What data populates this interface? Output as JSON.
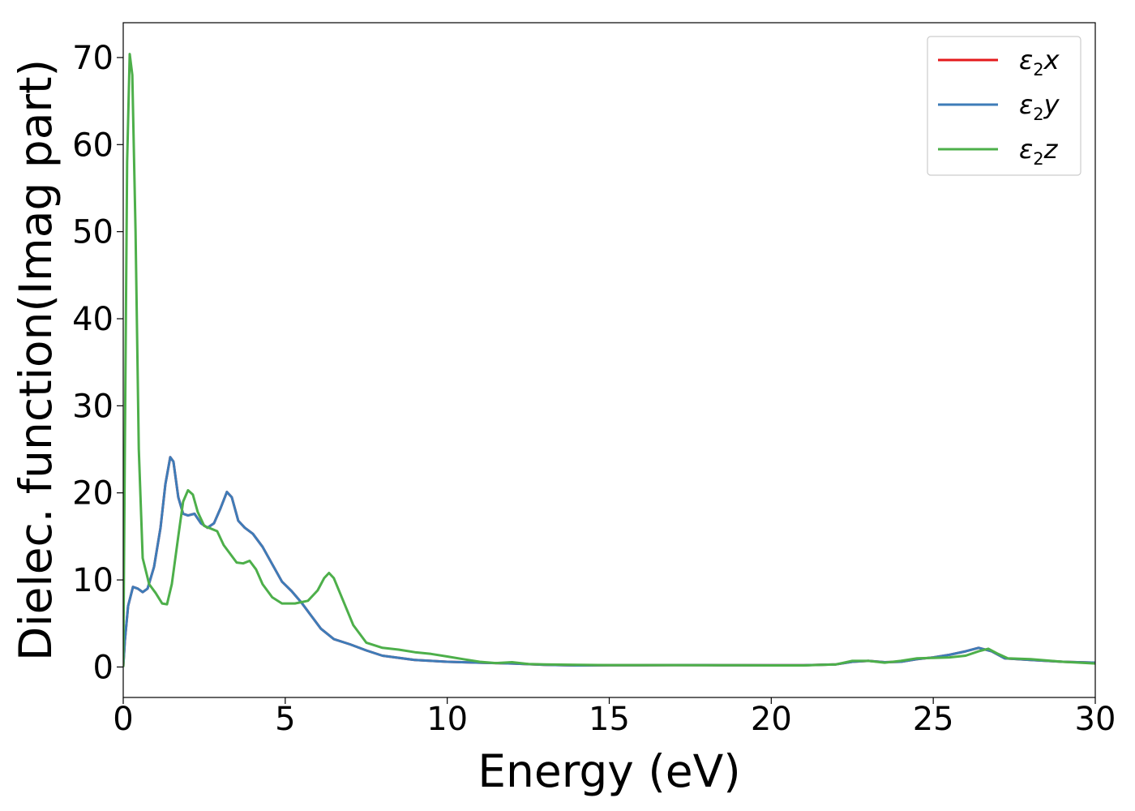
{
  "chart_data": {
    "type": "line",
    "title": "",
    "xlabel": "Energy (eV)",
    "ylabel": "Dielec. function(Imag part)",
    "xlim": [
      0,
      30
    ],
    "ylim": [
      -3.5,
      74
    ],
    "xticks": [
      0,
      5,
      10,
      15,
      20,
      25,
      30
    ],
    "xtick_labels": [
      "0",
      "5",
      "10",
      "15",
      "20",
      "25",
      "30"
    ],
    "yticks": [
      0,
      10,
      20,
      30,
      40,
      50,
      60,
      70
    ],
    "ytick_labels": [
      "0",
      "10",
      "20",
      "30",
      "40",
      "50",
      "60",
      "70"
    ],
    "grid": false,
    "legend_position": "top-right",
    "series": [
      {
        "name": "ε2x",
        "legend_symbol": "ε",
        "legend_sub": "2",
        "legend_var": "x",
        "color": "#e41a1c",
        "points": [
          [
            0,
            0
          ],
          [
            0.05,
            3
          ],
          [
            0.15,
            7
          ],
          [
            0.3,
            9.2
          ],
          [
            0.45,
            9
          ],
          [
            0.6,
            8.6
          ],
          [
            0.75,
            9
          ],
          [
            0.95,
            11.5
          ],
          [
            1.15,
            16
          ],
          [
            1.3,
            21
          ],
          [
            1.45,
            24.1
          ],
          [
            1.55,
            23.6
          ],
          [
            1.7,
            19.5
          ],
          [
            1.85,
            17.6
          ],
          [
            2.0,
            17.4
          ],
          [
            2.2,
            17.6
          ],
          [
            2.4,
            16.5
          ],
          [
            2.6,
            16
          ],
          [
            2.8,
            16.5
          ],
          [
            3.0,
            18.2
          ],
          [
            3.2,
            20.1
          ],
          [
            3.35,
            19.5
          ],
          [
            3.55,
            16.8
          ],
          [
            3.75,
            16
          ],
          [
            4.0,
            15.3
          ],
          [
            4.3,
            13.8
          ],
          [
            4.6,
            11.8
          ],
          [
            4.9,
            9.8
          ],
          [
            5.2,
            8.7
          ],
          [
            5.5,
            7.4
          ],
          [
            5.8,
            5.9
          ],
          [
            6.1,
            4.4
          ],
          [
            6.5,
            3.2
          ],
          [
            7.0,
            2.6
          ],
          [
            7.5,
            1.9
          ],
          [
            8.0,
            1.3
          ],
          [
            9.0,
            0.8
          ],
          [
            10,
            0.6
          ],
          [
            11,
            0.5
          ],
          [
            12,
            0.4
          ],
          [
            13,
            0.25
          ],
          [
            14,
            0.18
          ],
          [
            15,
            0.2
          ],
          [
            16,
            0.2
          ],
          [
            17,
            0.22
          ],
          [
            18,
            0.22
          ],
          [
            19,
            0.2
          ],
          [
            20,
            0.2
          ],
          [
            21,
            0.2
          ],
          [
            22,
            0.3
          ],
          [
            22.5,
            0.6
          ],
          [
            23,
            0.7
          ],
          [
            23.5,
            0.55
          ],
          [
            24,
            0.6
          ],
          [
            24.5,
            0.9
          ],
          [
            25,
            1.1
          ],
          [
            25.5,
            1.4
          ],
          [
            26,
            1.8
          ],
          [
            26.4,
            2.2
          ],
          [
            26.8,
            1.8
          ],
          [
            27.2,
            1.0
          ],
          [
            28,
            0.8
          ],
          [
            29,
            0.6
          ],
          [
            30,
            0.5
          ]
        ]
      },
      {
        "name": "ε2y",
        "legend_symbol": "ε",
        "legend_sub": "2",
        "legend_var": "y",
        "color": "#3e7cb8",
        "points": [
          [
            0,
            0
          ],
          [
            0.05,
            3
          ],
          [
            0.15,
            7
          ],
          [
            0.3,
            9.2
          ],
          [
            0.45,
            9
          ],
          [
            0.6,
            8.6
          ],
          [
            0.75,
            9
          ],
          [
            0.95,
            11.5
          ],
          [
            1.15,
            16
          ],
          [
            1.3,
            21
          ],
          [
            1.45,
            24.1
          ],
          [
            1.55,
            23.6
          ],
          [
            1.7,
            19.5
          ],
          [
            1.85,
            17.6
          ],
          [
            2.0,
            17.4
          ],
          [
            2.2,
            17.6
          ],
          [
            2.4,
            16.5
          ],
          [
            2.6,
            16
          ],
          [
            2.8,
            16.5
          ],
          [
            3.0,
            18.2
          ],
          [
            3.2,
            20.1
          ],
          [
            3.35,
            19.5
          ],
          [
            3.55,
            16.8
          ],
          [
            3.75,
            16
          ],
          [
            4.0,
            15.3
          ],
          [
            4.3,
            13.8
          ],
          [
            4.6,
            11.8
          ],
          [
            4.9,
            9.8
          ],
          [
            5.2,
            8.7
          ],
          [
            5.5,
            7.4
          ],
          [
            5.8,
            5.9
          ],
          [
            6.1,
            4.4
          ],
          [
            6.5,
            3.2
          ],
          [
            7.0,
            2.6
          ],
          [
            7.5,
            1.9
          ],
          [
            8.0,
            1.3
          ],
          [
            9.0,
            0.8
          ],
          [
            10,
            0.6
          ],
          [
            11,
            0.5
          ],
          [
            12,
            0.4
          ],
          [
            13,
            0.25
          ],
          [
            14,
            0.18
          ],
          [
            15,
            0.2
          ],
          [
            16,
            0.2
          ],
          [
            17,
            0.22
          ],
          [
            18,
            0.22
          ],
          [
            19,
            0.2
          ],
          [
            20,
            0.2
          ],
          [
            21,
            0.2
          ],
          [
            22,
            0.3
          ],
          [
            22.5,
            0.6
          ],
          [
            23,
            0.7
          ],
          [
            23.5,
            0.55
          ],
          [
            24,
            0.6
          ],
          [
            24.5,
            0.9
          ],
          [
            25,
            1.1
          ],
          [
            25.5,
            1.4
          ],
          [
            26,
            1.8
          ],
          [
            26.4,
            2.2
          ],
          [
            26.8,
            1.8
          ],
          [
            27.2,
            1.0
          ],
          [
            28,
            0.8
          ],
          [
            29,
            0.6
          ],
          [
            30,
            0.5
          ]
        ]
      },
      {
        "name": "ε2z",
        "legend_symbol": "ε",
        "legend_sub": "2",
        "legend_var": "z",
        "color": "#4daf4a",
        "points": [
          [
            0,
            0
          ],
          [
            0.05,
            25
          ],
          [
            0.12,
            58
          ],
          [
            0.2,
            70.4
          ],
          [
            0.28,
            68
          ],
          [
            0.38,
            50
          ],
          [
            0.48,
            25
          ],
          [
            0.6,
            12.5
          ],
          [
            0.8,
            9.5
          ],
          [
            1.0,
            8.5
          ],
          [
            1.2,
            7.3
          ],
          [
            1.35,
            7.2
          ],
          [
            1.5,
            9.5
          ],
          [
            1.7,
            15
          ],
          [
            1.85,
            19
          ],
          [
            2.0,
            20.3
          ],
          [
            2.15,
            19.8
          ],
          [
            2.3,
            17.8
          ],
          [
            2.5,
            16.2
          ],
          [
            2.7,
            15.9
          ],
          [
            2.9,
            15.6
          ],
          [
            3.1,
            14
          ],
          [
            3.3,
            13
          ],
          [
            3.5,
            12
          ],
          [
            3.7,
            11.9
          ],
          [
            3.9,
            12.2
          ],
          [
            4.1,
            11.2
          ],
          [
            4.3,
            9.5
          ],
          [
            4.6,
            8.0
          ],
          [
            4.9,
            7.3
          ],
          [
            5.3,
            7.3
          ],
          [
            5.7,
            7.6
          ],
          [
            6.0,
            8.8
          ],
          [
            6.2,
            10.2
          ],
          [
            6.35,
            10.8
          ],
          [
            6.5,
            10.2
          ],
          [
            6.8,
            7.5
          ],
          [
            7.1,
            4.8
          ],
          [
            7.5,
            2.8
          ],
          [
            8.0,
            2.2
          ],
          [
            8.5,
            2.0
          ],
          [
            9.0,
            1.7
          ],
          [
            9.5,
            1.5
          ],
          [
            10,
            1.2
          ],
          [
            10.5,
            0.9
          ],
          [
            11,
            0.6
          ],
          [
            11.5,
            0.45
          ],
          [
            12,
            0.55
          ],
          [
            12.5,
            0.35
          ],
          [
            13,
            0.3
          ],
          [
            14,
            0.25
          ],
          [
            15,
            0.22
          ],
          [
            16,
            0.22
          ],
          [
            17,
            0.22
          ],
          [
            18,
            0.2
          ],
          [
            19,
            0.2
          ],
          [
            20,
            0.18
          ],
          [
            21,
            0.18
          ],
          [
            22,
            0.3
          ],
          [
            22.5,
            0.7
          ],
          [
            23,
            0.7
          ],
          [
            23.5,
            0.5
          ],
          [
            24,
            0.7
          ],
          [
            24.5,
            1.0
          ],
          [
            25,
            1.05
          ],
          [
            25.5,
            1.1
          ],
          [
            26,
            1.3
          ],
          [
            26.4,
            1.8
          ],
          [
            26.7,
            2.1
          ],
          [
            27.0,
            1.5
          ],
          [
            27.3,
            1.0
          ],
          [
            28,
            0.9
          ],
          [
            29,
            0.6
          ],
          [
            30,
            0.4
          ]
        ]
      }
    ]
  }
}
